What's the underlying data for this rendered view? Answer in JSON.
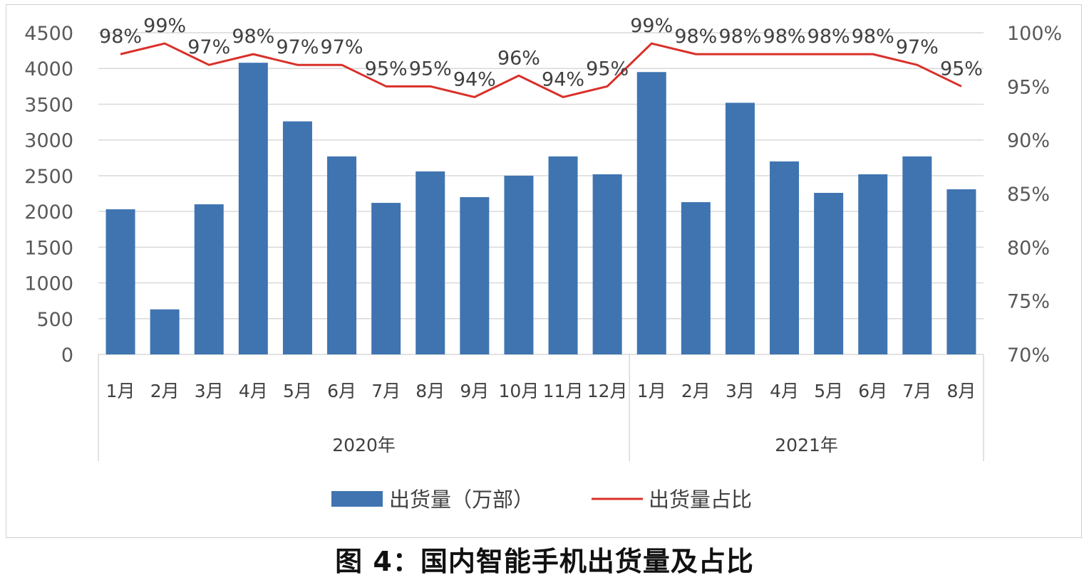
{
  "caption": "图 4：国内智能手机出货量及占比",
  "colors": {
    "bar": "#3F74B1",
    "line": "#D9302A",
    "grid": "#D9D9D9",
    "axis_text": "#595959"
  },
  "chart_data": {
    "type": "bar",
    "categories": [
      "1月",
      "2月",
      "3月",
      "4月",
      "5月",
      "6月",
      "7月",
      "8月",
      "9月",
      "10月",
      "11月",
      "12月",
      "1月",
      "2月",
      "3月",
      "4月",
      "5月",
      "6月",
      "7月",
      "8月"
    ],
    "groups": [
      {
        "label": "2020年",
        "count": 12
      },
      {
        "label": "2021年",
        "count": 8
      }
    ],
    "series": [
      {
        "name": "出货量（万部）",
        "type": "bar",
        "axis": "left",
        "values": [
          2030,
          630,
          2100,
          4080,
          3260,
          2770,
          2120,
          2560,
          2200,
          2500,
          2770,
          2520,
          3950,
          2130,
          3520,
          2700,
          2260,
          2520,
          2770,
          2310
        ]
      },
      {
        "name": "出货量占比",
        "type": "line",
        "axis": "right",
        "values": [
          98,
          99,
          97,
          98,
          97,
          97,
          95,
          95,
          94,
          96,
          94,
          95,
          99,
          98,
          98,
          98,
          98,
          98,
          97,
          95
        ],
        "labels": [
          "98%",
          "99%",
          "97%",
          "98%",
          "97%",
          "97%",
          "95%",
          "95%",
          "94%",
          "96%",
          "94%",
          "95%",
          "99%",
          "98%",
          "98%",
          "98%",
          "98%",
          "98%",
          "97%",
          "95%"
        ]
      }
    ],
    "y_left": {
      "min": 0,
      "max": 4500,
      "ticks": [
        "0",
        "500",
        "1000",
        "1500",
        "2000",
        "2500",
        "3000",
        "3500",
        "4000",
        "4500"
      ]
    },
    "y_right": {
      "min": 70,
      "max": 100,
      "ticks": [
        "70%",
        "75%",
        "80%",
        "85%",
        "90%",
        "95%",
        "100%"
      ]
    },
    "grid": true,
    "legend_position": "bottom"
  }
}
